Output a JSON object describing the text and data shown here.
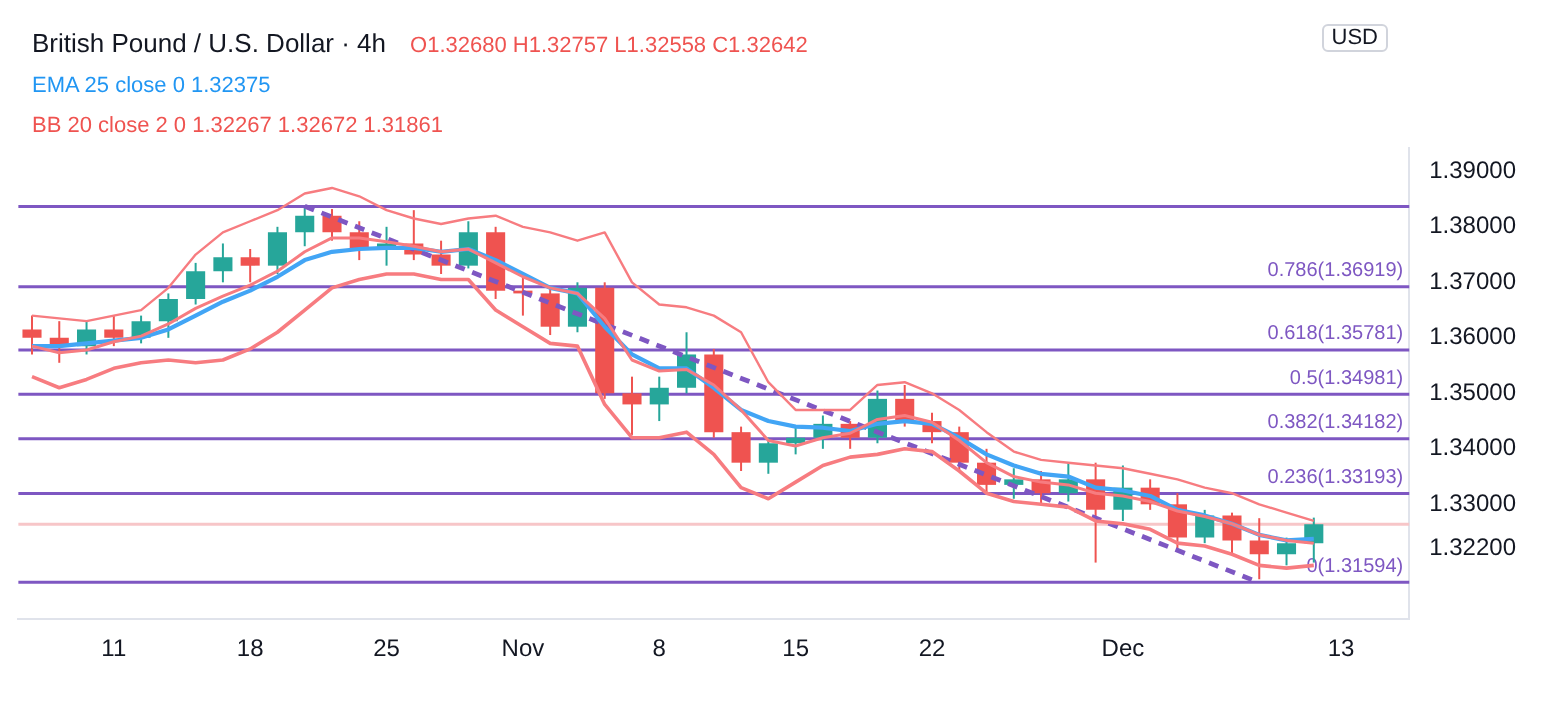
{
  "chart_data": {
    "type": "candlestick",
    "title": "British Pound / U.S. Dollar · 4h",
    "annotations": [
      "O1.32680 H1.32757 L1.32558 C1.32642",
      "EMA 25 close 0 1.32375",
      "BB 20 close 2 0 1.32267 1.32672 1.31861",
      "USD"
    ],
    "categories": [
      null,
      null,
      null,
      "11",
      null,
      null,
      null,
      null,
      "18",
      null,
      null,
      null,
      null,
      "25",
      null,
      null,
      null,
      null,
      "Nov",
      null,
      null,
      null,
      null,
      "8",
      null,
      null,
      null,
      null,
      "15",
      null,
      null,
      null,
      null,
      "22",
      null,
      null,
      null,
      null,
      null,
      null,
      "Dec",
      null,
      null,
      null,
      null,
      null,
      null,
      null,
      "13",
      null,
      null
    ],
    "ohlc": [
      [
        1.3615,
        1.364,
        1.357,
        1.36
      ],
      [
        1.36,
        1.363,
        1.3555,
        1.3585
      ],
      [
        1.3585,
        1.363,
        1.357,
        1.3615
      ],
      [
        1.3615,
        1.364,
        1.3585,
        1.36
      ],
      [
        1.36,
        1.364,
        1.359,
        1.363
      ],
      [
        1.363,
        1.368,
        1.36,
        1.367
      ],
      [
        1.367,
        1.3735,
        1.366,
        1.372
      ],
      [
        1.372,
        1.377,
        1.37,
        1.3745
      ],
      [
        1.3745,
        1.376,
        1.37,
        1.373
      ],
      [
        1.373,
        1.38,
        1.3715,
        1.379
      ],
      [
        1.379,
        1.3834,
        1.3765,
        1.382
      ],
      [
        1.382,
        1.3832,
        1.3775,
        1.379
      ],
      [
        1.379,
        1.381,
        1.374,
        1.376
      ],
      [
        1.376,
        1.38,
        1.373,
        1.377
      ],
      [
        1.377,
        1.383,
        1.374,
        1.375
      ],
      [
        1.375,
        1.3775,
        1.3715,
        1.373
      ],
      [
        1.373,
        1.381,
        1.3725,
        1.379
      ],
      [
        1.379,
        1.38,
        1.367,
        1.3685
      ],
      [
        1.3685,
        1.371,
        1.364,
        1.368
      ],
      [
        1.368,
        1.369,
        1.3605,
        1.362
      ],
      [
        1.362,
        1.37,
        1.361,
        1.369
      ],
      [
        1.369,
        1.37,
        1.349,
        1.35
      ],
      [
        1.35,
        1.353,
        1.3425,
        1.348
      ],
      [
        1.348,
        1.353,
        1.345,
        1.351
      ],
      [
        1.351,
        1.361,
        1.35,
        1.357
      ],
      [
        1.357,
        1.358,
        1.342,
        1.343
      ],
      [
        1.343,
        1.344,
        1.336,
        1.3375
      ],
      [
        1.3375,
        1.342,
        1.3355,
        1.341
      ],
      [
        1.341,
        1.344,
        1.339,
        1.342
      ],
      [
        1.342,
        1.346,
        1.34,
        1.3445
      ],
      [
        1.3445,
        1.345,
        1.34,
        1.342
      ],
      [
        1.342,
        1.3505,
        1.341,
        1.349
      ],
      [
        1.349,
        1.3515,
        1.344,
        1.345
      ],
      [
        1.345,
        1.3465,
        1.341,
        1.343
      ],
      [
        1.343,
        1.344,
        1.336,
        1.3375
      ],
      [
        1.3375,
        1.34,
        1.332,
        1.3335
      ],
      [
        1.3335,
        1.3365,
        1.331,
        1.3345
      ],
      [
        1.3345,
        1.336,
        1.33,
        1.332
      ],
      [
        1.332,
        1.3375,
        1.3305,
        1.3345
      ],
      [
        1.3345,
        1.3375,
        1.3195,
        1.329
      ],
      [
        1.329,
        1.337,
        1.327,
        1.333
      ],
      [
        1.333,
        1.3345,
        1.329,
        1.33
      ],
      [
        1.33,
        1.332,
        1.322,
        1.324
      ],
      [
        1.324,
        1.329,
        1.323,
        1.328
      ],
      [
        1.328,
        1.3285,
        1.321,
        1.3235
      ],
      [
        1.3235,
        1.3275,
        1.3165,
        1.321
      ],
      [
        1.321,
        1.324,
        1.319,
        1.323
      ],
      [
        1.323,
        1.3276,
        1.3195,
        1.3264
      ],
      null,
      null,
      null
    ],
    "colors": [
      "#ef5350",
      "#ef5350",
      "#26a69a",
      "#ef5350",
      "#26a69a",
      "#26a69a",
      "#26a69a",
      "#26a69a",
      "#ef5350",
      "#26a69a",
      "#26a69a",
      "#ef5350",
      "#ef5350",
      "#26a69a",
      "#ef5350",
      "#ef5350",
      "#26a69a",
      "#ef5350",
      "#ef5350",
      "#ef5350",
      "#26a69a",
      "#ef5350",
      "#ef5350",
      "#26a69a",
      "#26a69a",
      "#ef5350",
      "#ef5350",
      "#26a69a",
      "#26a69a",
      "#26a69a",
      "#ef5350",
      "#26a69a",
      "#ef5350",
      "#ef5350",
      "#ef5350",
      "#ef5350",
      "#26a69a",
      "#ef5350",
      "#26a69a",
      "#ef5350",
      "#26a69a",
      "#ef5350",
      "#ef5350",
      "#26a69a",
      "#ef5350",
      "#ef5350",
      "#26a69a",
      "#26a69a",
      null,
      null,
      null
    ],
    "series": [
      {
        "type": "line",
        "color": "#f77c80",
        "values": [
          1.364,
          1.3635,
          1.363,
          1.364,
          1.365,
          1.369,
          1.375,
          1.379,
          1.381,
          1.383,
          1.386,
          1.387,
          1.3855,
          1.383,
          1.3815,
          1.3805,
          1.3815,
          1.382,
          1.38,
          1.379,
          1.3775,
          1.379,
          1.37,
          1.366,
          1.3655,
          1.364,
          1.361,
          1.352,
          1.347,
          1.347,
          1.347,
          1.3515,
          1.352,
          1.35,
          1.347,
          1.343,
          1.3395,
          1.338,
          1.3375,
          1.337,
          1.3365,
          1.3355,
          1.3345,
          1.333,
          1.332,
          1.33,
          1.3285,
          1.327,
          null,
          null,
          null
        ]
      },
      {
        "type": "line",
        "color": "#f77c80",
        "values": [
          1.3585,
          1.3573,
          1.3578,
          1.3593,
          1.3603,
          1.3625,
          1.3653,
          1.3675,
          1.3695,
          1.372,
          1.3755,
          1.378,
          1.378,
          1.3773,
          1.3765,
          1.3755,
          1.376,
          1.3735,
          1.371,
          1.369,
          1.368,
          1.3635,
          1.356,
          1.354,
          1.3543,
          1.3515,
          1.347,
          1.3415,
          1.3405,
          1.342,
          1.3428,
          1.3453,
          1.346,
          1.3448,
          1.3415,
          1.3375,
          1.335,
          1.334,
          1.3335,
          1.332,
          1.3315,
          1.3305,
          1.3288,
          1.3278,
          1.3265,
          1.3245,
          1.3235,
          1.323,
          null,
          null,
          null
        ]
      },
      {
        "type": "line",
        "color": "#f77c80",
        "values": [
          1.353,
          1.351,
          1.3525,
          1.3545,
          1.3555,
          1.356,
          1.3555,
          1.356,
          1.358,
          1.361,
          1.365,
          1.369,
          1.3705,
          1.3715,
          1.3715,
          1.3705,
          1.3705,
          1.365,
          1.362,
          1.359,
          1.3585,
          1.348,
          1.342,
          1.342,
          1.343,
          1.339,
          1.333,
          1.331,
          1.334,
          1.337,
          1.3385,
          1.339,
          1.34,
          1.3395,
          1.336,
          1.332,
          1.3305,
          1.33,
          1.3295,
          1.327,
          1.3265,
          1.3255,
          1.323,
          1.3225,
          1.321,
          1.319,
          1.3185,
          1.319,
          null,
          null,
          null
        ]
      },
      {
        "type": "line",
        "color": "#42a5f5",
        "values": [
          1.3585,
          1.3585,
          1.359,
          1.3595,
          1.36,
          1.3615,
          1.364,
          1.3665,
          1.3685,
          1.371,
          1.374,
          1.3755,
          1.376,
          1.3762,
          1.3762,
          1.3755,
          1.376,
          1.374,
          1.3715,
          1.369,
          1.368,
          1.362,
          1.357,
          1.3545,
          1.3545,
          1.351,
          1.347,
          1.345,
          1.344,
          1.3438,
          1.3432,
          1.3445,
          1.345,
          1.3445,
          1.342,
          1.339,
          1.337,
          1.3355,
          1.335,
          1.333,
          1.3325,
          1.3315,
          1.329,
          1.328,
          1.3265,
          1.3245,
          1.3235,
          1.3238,
          null,
          null,
          null
        ]
      },
      {
        "type": "line",
        "color": "#7e57c2",
        "line_style": "dashed",
        "values": [
          null,
          null,
          null,
          null,
          null,
          null,
          null,
          null,
          null,
          null,
          1.3837,
          null,
          null,
          null,
          null,
          null,
          null,
          null,
          null,
          null,
          null,
          null,
          null,
          null,
          null,
          null,
          null,
          null,
          null,
          null,
          null,
          null,
          null,
          null,
          null,
          null,
          null,
          null,
          null,
          null,
          null,
          null,
          null,
          null,
          null,
          1.3159,
          null,
          null,
          null,
          null,
          null
        ]
      }
    ],
    "ylim": [
      1.3093,
      1.3942
    ],
    "yticks": [
      {
        "value": 1.39,
        "label": "1.39000"
      },
      {
        "value": 1.38,
        "label": "1.38000"
      },
      {
        "value": 1.37,
        "label": "1.37000"
      },
      {
        "value": 1.36,
        "label": "1.36000"
      },
      {
        "value": 1.35,
        "label": "1.35000"
      },
      {
        "value": 1.34,
        "label": "1.34000"
      },
      {
        "value": 1.33,
        "label": "1.33000"
      },
      {
        "value": 1.322,
        "label": "1.32200"
      }
    ],
    "ref_lines": [
      {
        "axis": "y",
        "value": 1.38368,
        "color": "#7e57c2"
      },
      {
        "axis": "y",
        "value": 1.36919,
        "label": "0.786(1.36919)",
        "color": "#7e57c2"
      },
      {
        "axis": "y",
        "value": 1.35781,
        "label": "0.618(1.35781)",
        "color": "#7e57c2"
      },
      {
        "axis": "y",
        "value": 1.34981,
        "label": "0.5(1.34981)",
        "color": "#7e57c2"
      },
      {
        "axis": "y",
        "value": 1.34182,
        "label": "0.382(1.34182)",
        "color": "#7e57c2"
      },
      {
        "axis": "y",
        "value": 1.33193,
        "label": "0.236(1.33193)",
        "color": "#7e57c2"
      },
      {
        "axis": "y",
        "value": 1.31594,
        "label": "0(1.31594)",
        "color": "#7e57c2"
      },
      {
        "axis": "y",
        "value": 1.32642,
        "color": "#f7c6c8"
      }
    ],
    "grid": false,
    "legend": false
  }
}
